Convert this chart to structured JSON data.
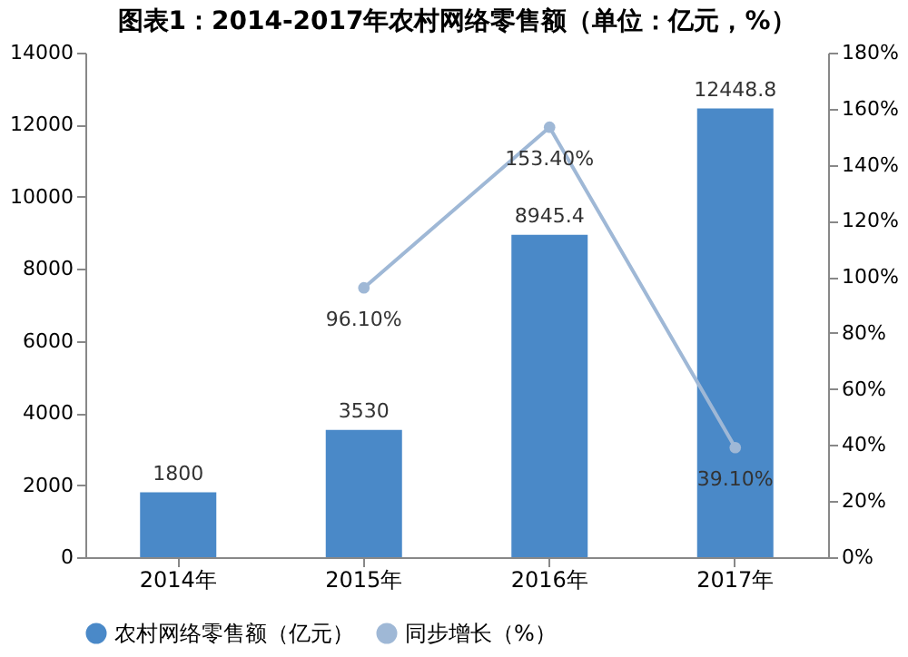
{
  "chart_data": {
    "type": "bar",
    "title": "图表1：2014-2017年农村网络零售额（单位：亿元，%）",
    "categories": [
      "2014年",
      "2015年",
      "2016年",
      "2017年"
    ],
    "series": [
      {
        "name": "农村网络零售额（亿元）",
        "color": "#4a89c8",
        "values": [
          1800,
          3530,
          8945.4,
          12448.8
        ],
        "data_labels": true
      },
      {
        "name": "同步增长（%）",
        "type": "line",
        "axis": "y2",
        "color": "#9fb8d6",
        "marker": "circle",
        "values": [
          null,
          96.1,
          153.4,
          39.1
        ],
        "value_labels": [
          null,
          "96.10%",
          "153.40%",
          "39.10%"
        ]
      }
    ],
    "ylim": [
      0,
      14000
    ],
    "yticks": [
      0,
      2000,
      4000,
      6000,
      8000,
      10000,
      12000,
      14000
    ],
    "y2lim": [
      0,
      180
    ],
    "y2ticks": [
      {
        "value": 0,
        "label": "0%"
      },
      {
        "value": 20,
        "label": "20%"
      },
      {
        "value": 40,
        "label": "40%"
      },
      {
        "value": 60,
        "label": "60%"
      },
      {
        "value": 80,
        "label": "80%"
      },
      {
        "value": 100,
        "label": "100%"
      },
      {
        "value": 120,
        "label": "120%"
      },
      {
        "value": 140,
        "label": "140%"
      },
      {
        "value": 160,
        "label": "160%"
      },
      {
        "value": 180,
        "label": "180%"
      }
    ],
    "grid": false,
    "legend": "bottom"
  }
}
